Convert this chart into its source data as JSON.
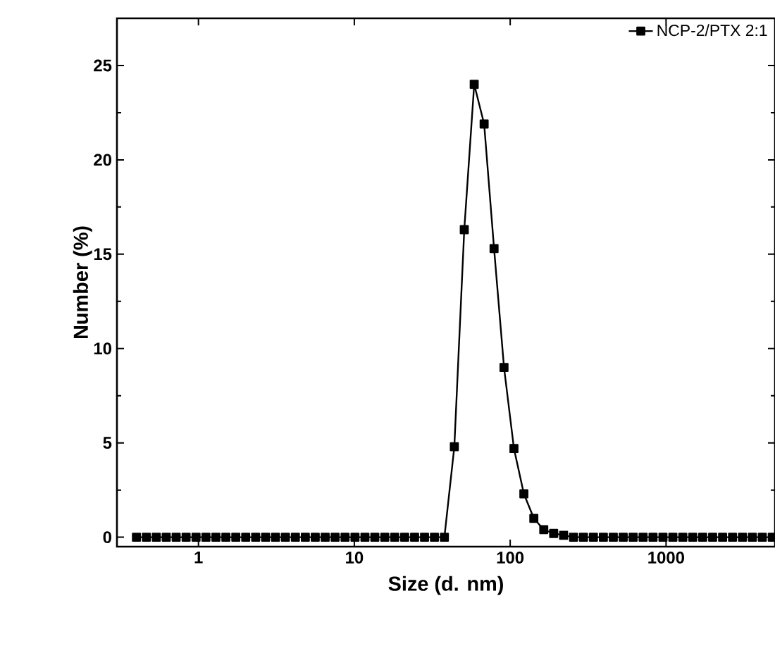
{
  "chart_data": {
    "type": "line",
    "xlabel": "Size (d. nm)",
    "ylabel": "Number (%)",
    "log": "x",
    "marker": "square",
    "line_style": "solid",
    "legend": "top right",
    "grid": false,
    "xlim": [
      0.3,
      5000
    ],
    "ylim": [
      -0.5,
      27.5
    ],
    "xticks": [
      1,
      10,
      100,
      1000
    ],
    "yticks": [
      0,
      5,
      10,
      15,
      20,
      25
    ],
    "series": [
      {
        "name": "NCP-2/PTX 2:1",
        "color": "#000000",
        "x": [
          0.4,
          0.4632,
          0.5365,
          0.6213,
          0.7195,
          0.8332,
          0.9649,
          1.117,
          1.294,
          1.499,
          1.736,
          2.01,
          2.328,
          2.696,
          3.122,
          3.615,
          4.187,
          4.849,
          5.615,
          6.503,
          7.531,
          8.721,
          10.1,
          11.7,
          13.54,
          15.69,
          18.17,
          21.04,
          24.36,
          28.21,
          32.67,
          37.84,
          43.82,
          50.75,
          58.77,
          68.06,
          78.82,
          91.28,
          105.7,
          122.4,
          141.8,
          164.2,
          190.1,
          220.2,
          255,
          295.3,
          342,
          396.1,
          458.7,
          531.2,
          615.1,
          712.4,
          825,
          955.4,
          1106,
          1281,
          1484,
          1718,
          1990,
          2305,
          2669,
          3091,
          3580,
          4145,
          4801
        ],
        "values": [
          0,
          0,
          0,
          0,
          0,
          0,
          0,
          0,
          0,
          0,
          0,
          0,
          0,
          0,
          0,
          0,
          0,
          0,
          0,
          0,
          0,
          0,
          0,
          0,
          0,
          0,
          0,
          0,
          0,
          0,
          0,
          0,
          4.8,
          16.3,
          24.0,
          21.9,
          15.3,
          9.0,
          4.7,
          2.3,
          1.0,
          0.4,
          0.2,
          0.1,
          0,
          0,
          0,
          0,
          0,
          0,
          0,
          0,
          0,
          0,
          0,
          0,
          0,
          0,
          0,
          0,
          0,
          0,
          0,
          0,
          0
        ]
      }
    ]
  }
}
